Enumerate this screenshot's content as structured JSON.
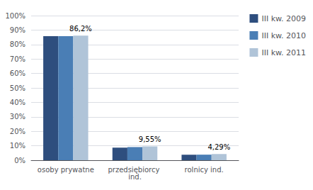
{
  "chart_data": {
    "type": "bar",
    "categories": [
      "osoby prywatne",
      "przedsiębiorcy ind.",
      "rolnicy ind."
    ],
    "series": [
      {
        "name": "III kw. 2009",
        "color": "#2E4E7E",
        "values": [
          85.8,
          8.7,
          3.8
        ]
      },
      {
        "name": "III kw. 2010",
        "color": "#4A7EB5",
        "values": [
          85.8,
          9.1,
          3.85
        ]
      },
      {
        "name": "III kw. 2011",
        "color": "#B0C4D8",
        "values": [
          86.2,
          9.55,
          4.29
        ]
      }
    ],
    "annotations": [
      {
        "text": "86,2%",
        "category": "osoby prywatne",
        "series": "III kw. 2011"
      },
      {
        "text": "9,55%",
        "category": "przedsiębiorcy ind.",
        "series": "III kw. 2011"
      },
      {
        "text": "4,29%",
        "category": "rolnicy ind.",
        "series": "III kw. 2011"
      }
    ],
    "ylim": [
      0,
      100
    ],
    "yticks": [
      {
        "value": 0,
        "label": "0%"
      },
      {
        "value": 10,
        "label": "10%"
      },
      {
        "value": 20,
        "label": "20%"
      },
      {
        "value": 30,
        "label": "30%"
      },
      {
        "value": 40,
        "label": "40%"
      },
      {
        "value": 50,
        "label": "50%"
      },
      {
        "value": 60,
        "label": "60%"
      },
      {
        "value": 70,
        "label": "70%"
      },
      {
        "value": 80,
        "label": "80%"
      },
      {
        "value": 90,
        "label": "90%"
      },
      {
        "value": 100,
        "label": "100%"
      }
    ],
    "grid": true,
    "legend": "upper right"
  }
}
